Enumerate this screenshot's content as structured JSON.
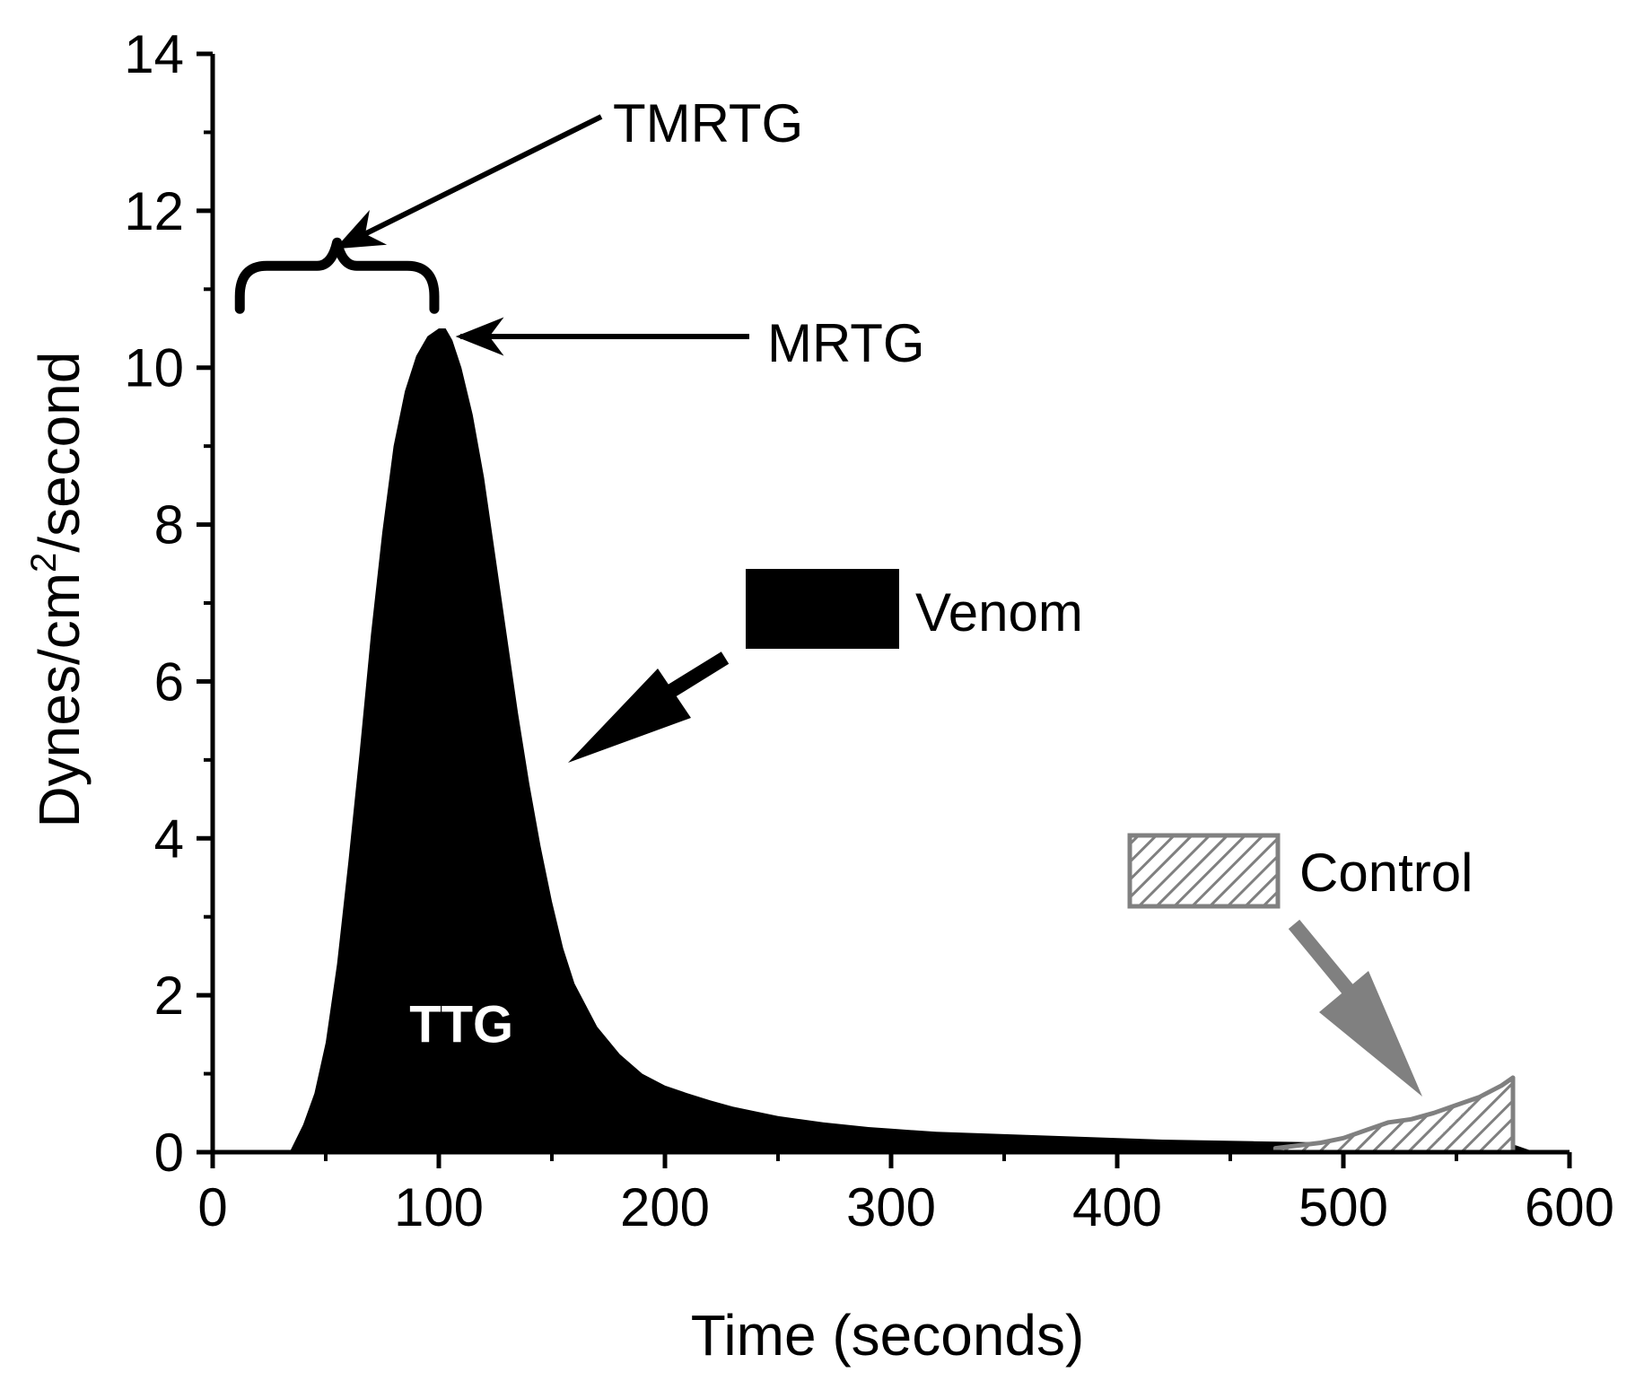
{
  "chart_data": {
    "type": "area",
    "title": "",
    "xlabel": "Time (seconds)",
    "ylabel_main": "Dynes/cm",
    "ylabel_sup": "2",
    "ylabel_tail": "/second",
    "xlim": [
      0,
      600
    ],
    "ylim": [
      0,
      14
    ],
    "x_ticks": [
      0,
      100,
      200,
      300,
      400,
      500,
      600
    ],
    "y_ticks": [
      0,
      2,
      4,
      6,
      8,
      10,
      12,
      14
    ],
    "grid": false,
    "series": [
      {
        "name": "Venom",
        "color": "#000000",
        "fill": "solid",
        "x": [
          34,
          40,
          45,
          50,
          55,
          60,
          65,
          70,
          75,
          80,
          85,
          90,
          95,
          100,
          103,
          106,
          110,
          115,
          120,
          125,
          130,
          135,
          140,
          145,
          150,
          155,
          160,
          170,
          180,
          190,
          200,
          210,
          220,
          230,
          240,
          250,
          260,
          270,
          280,
          290,
          300,
          320,
          340,
          360,
          380,
          400,
          420,
          440,
          460,
          480,
          500,
          520,
          540,
          560,
          575,
          585
        ],
        "y": [
          0,
          0.35,
          0.75,
          1.4,
          2.4,
          3.7,
          5.1,
          6.6,
          7.9,
          9.0,
          9.7,
          10.15,
          10.4,
          10.5,
          10.5,
          10.35,
          10.0,
          9.4,
          8.6,
          7.6,
          6.6,
          5.6,
          4.7,
          3.9,
          3.2,
          2.6,
          2.15,
          1.6,
          1.25,
          1.0,
          0.85,
          0.75,
          0.66,
          0.58,
          0.52,
          0.46,
          0.42,
          0.38,
          0.35,
          0.32,
          0.3,
          0.26,
          0.24,
          0.22,
          0.2,
          0.18,
          0.16,
          0.15,
          0.14,
          0.13,
          0.12,
          0.12,
          0.12,
          0.12,
          0.1,
          0
        ]
      },
      {
        "name": "Control",
        "color": "#808080",
        "fill": "hatched",
        "x": [
          470,
          490,
          500,
          510,
          520,
          530,
          540,
          550,
          560,
          570,
          575
        ],
        "y": [
          0.05,
          0.12,
          0.18,
          0.28,
          0.38,
          0.42,
          0.5,
          0.6,
          0.7,
          0.85,
          0.95
        ]
      }
    ],
    "legend": [
      {
        "label": "Venom",
        "style": "solid-black"
      },
      {
        "label": "Control",
        "style": "hatched-gray"
      }
    ],
    "annotations": [
      {
        "text": "TMRTG",
        "kind": "arrow-to-brace",
        "target_x": 55,
        "target_y": 11.4
      },
      {
        "text": "MRTG",
        "kind": "arrow-to-peak",
        "target_x": 104,
        "target_y": 10.5
      },
      {
        "text": "TTG",
        "kind": "area-label",
        "x": 110,
        "y": 1.4
      }
    ],
    "brace_range": [
      12,
      98
    ],
    "brace_y": 11.0
  }
}
